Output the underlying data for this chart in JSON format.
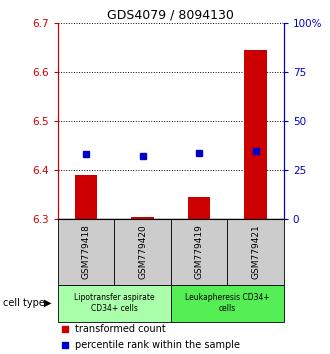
{
  "title": "GDS4079 / 8094130",
  "samples": [
    "GSM779418",
    "GSM779420",
    "GSM779419",
    "GSM779421"
  ],
  "red_values": [
    6.39,
    6.305,
    6.345,
    6.645
  ],
  "blue_values": [
    33,
    32,
    33.5,
    35
  ],
  "ymin": 6.3,
  "ymax": 6.7,
  "yticks": [
    6.3,
    6.4,
    6.5,
    6.6,
    6.7
  ],
  "y2min": 0,
  "y2max": 100,
  "y2ticks": [
    0,
    25,
    50,
    75,
    100
  ],
  "y2ticklabels": [
    "0",
    "25",
    "50",
    "75",
    "100%"
  ],
  "groups": [
    {
      "label": "Lipotransfer aspirate\nCD34+ cells",
      "color": "#aaffaa",
      "start": 0,
      "end": 2
    },
    {
      "label": "Leukapheresis CD34+\ncells",
      "color": "#55ee55",
      "start": 2,
      "end": 4
    }
  ],
  "cell_type_label": "cell type",
  "legend_red": "transformed count",
  "legend_blue": "percentile rank within the sample",
  "bar_color": "#cc0000",
  "dot_color": "#0000cc",
  "bar_width": 0.4,
  "sample_area_color": "#cccccc",
  "sample_label_fontsize": 6.5,
  "title_fontsize": 9,
  "tick_fontsize": 7.5,
  "legend_fontsize": 7
}
